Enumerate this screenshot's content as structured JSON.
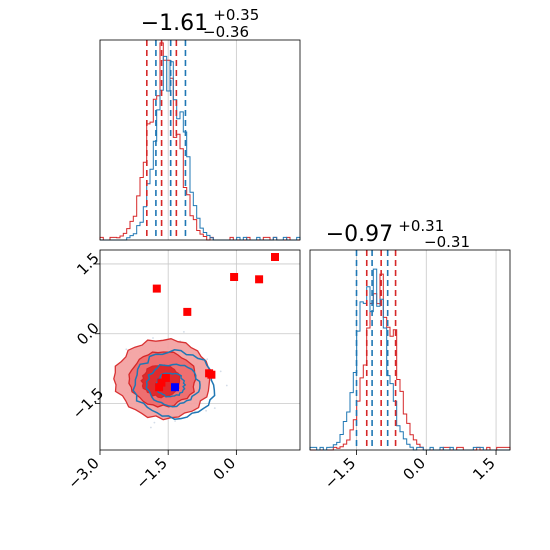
{
  "chart_data": [
    {
      "panel": "marginal-x",
      "type": "histogram",
      "title": {
        "value": "−1.61",
        "sup": "+0.35",
        "sub": "−0.36"
      },
      "xlim": [
        -3.0,
        1.4
      ],
      "series": [
        {
          "name": "",
          "color": "#d62728",
          "quantiles": [
            -1.97,
            -1.32
          ]
        },
        {
          "name": "",
          "color": "#1f77b4",
          "quantiles": [
            -1.77,
            -1.12
          ]
        }
      ]
    },
    {
      "panel": "joint",
      "type": "scatter",
      "xlim": [
        -3.0,
        1.4
      ],
      "ylim": [
        -2.5,
        1.8
      ],
      "xticks": [
        "−3.0",
        "−1.5",
        "0.0"
      ],
      "yticks": [
        "−1.5",
        "0.0",
        "1.5"
      ],
      "xtick_values": [
        -3.0,
        -1.5,
        0.0
      ],
      "ytick_values": [
        -1.5,
        0.0,
        1.5
      ],
      "red_points": [
        [
          -1.75,
          0.97
        ],
        [
          -1.08,
          0.47
        ],
        [
          -0.05,
          1.22
        ],
        [
          0.5,
          1.17
        ],
        [
          0.85,
          1.65
        ],
        [
          -0.6,
          -0.85
        ],
        [
          -0.55,
          -0.88
        ],
        [
          -1.55,
          -0.95
        ],
        [
          -1.65,
          -1.05
        ],
        [
          -1.7,
          -1.15
        ]
      ],
      "blue_points": [
        [
          -1.35,
          -1.15
        ]
      ],
      "red_contour_center": [
        -1.61,
        -0.97
      ],
      "blue_contour_center": [
        -1.45,
        -1.1
      ]
    },
    {
      "panel": "marginal-y",
      "type": "histogram",
      "title": {
        "value": "−0.97",
        "sup": "+0.31",
        "sub": "−0.31"
      },
      "xlim": [
        -2.5,
        1.8
      ],
      "xticks": [
        "−1.5",
        "0.0",
        "1.5"
      ],
      "xtick_values": [
        -1.5,
        0.0,
        1.5
      ],
      "series": [
        {
          "name": "",
          "color": "#d62728",
          "quantiles": [
            -1.28,
            -0.66
          ]
        },
        {
          "name": "",
          "color": "#1f77b4",
          "quantiles": [
            -1.5,
            -0.83
          ]
        }
      ]
    }
  ]
}
